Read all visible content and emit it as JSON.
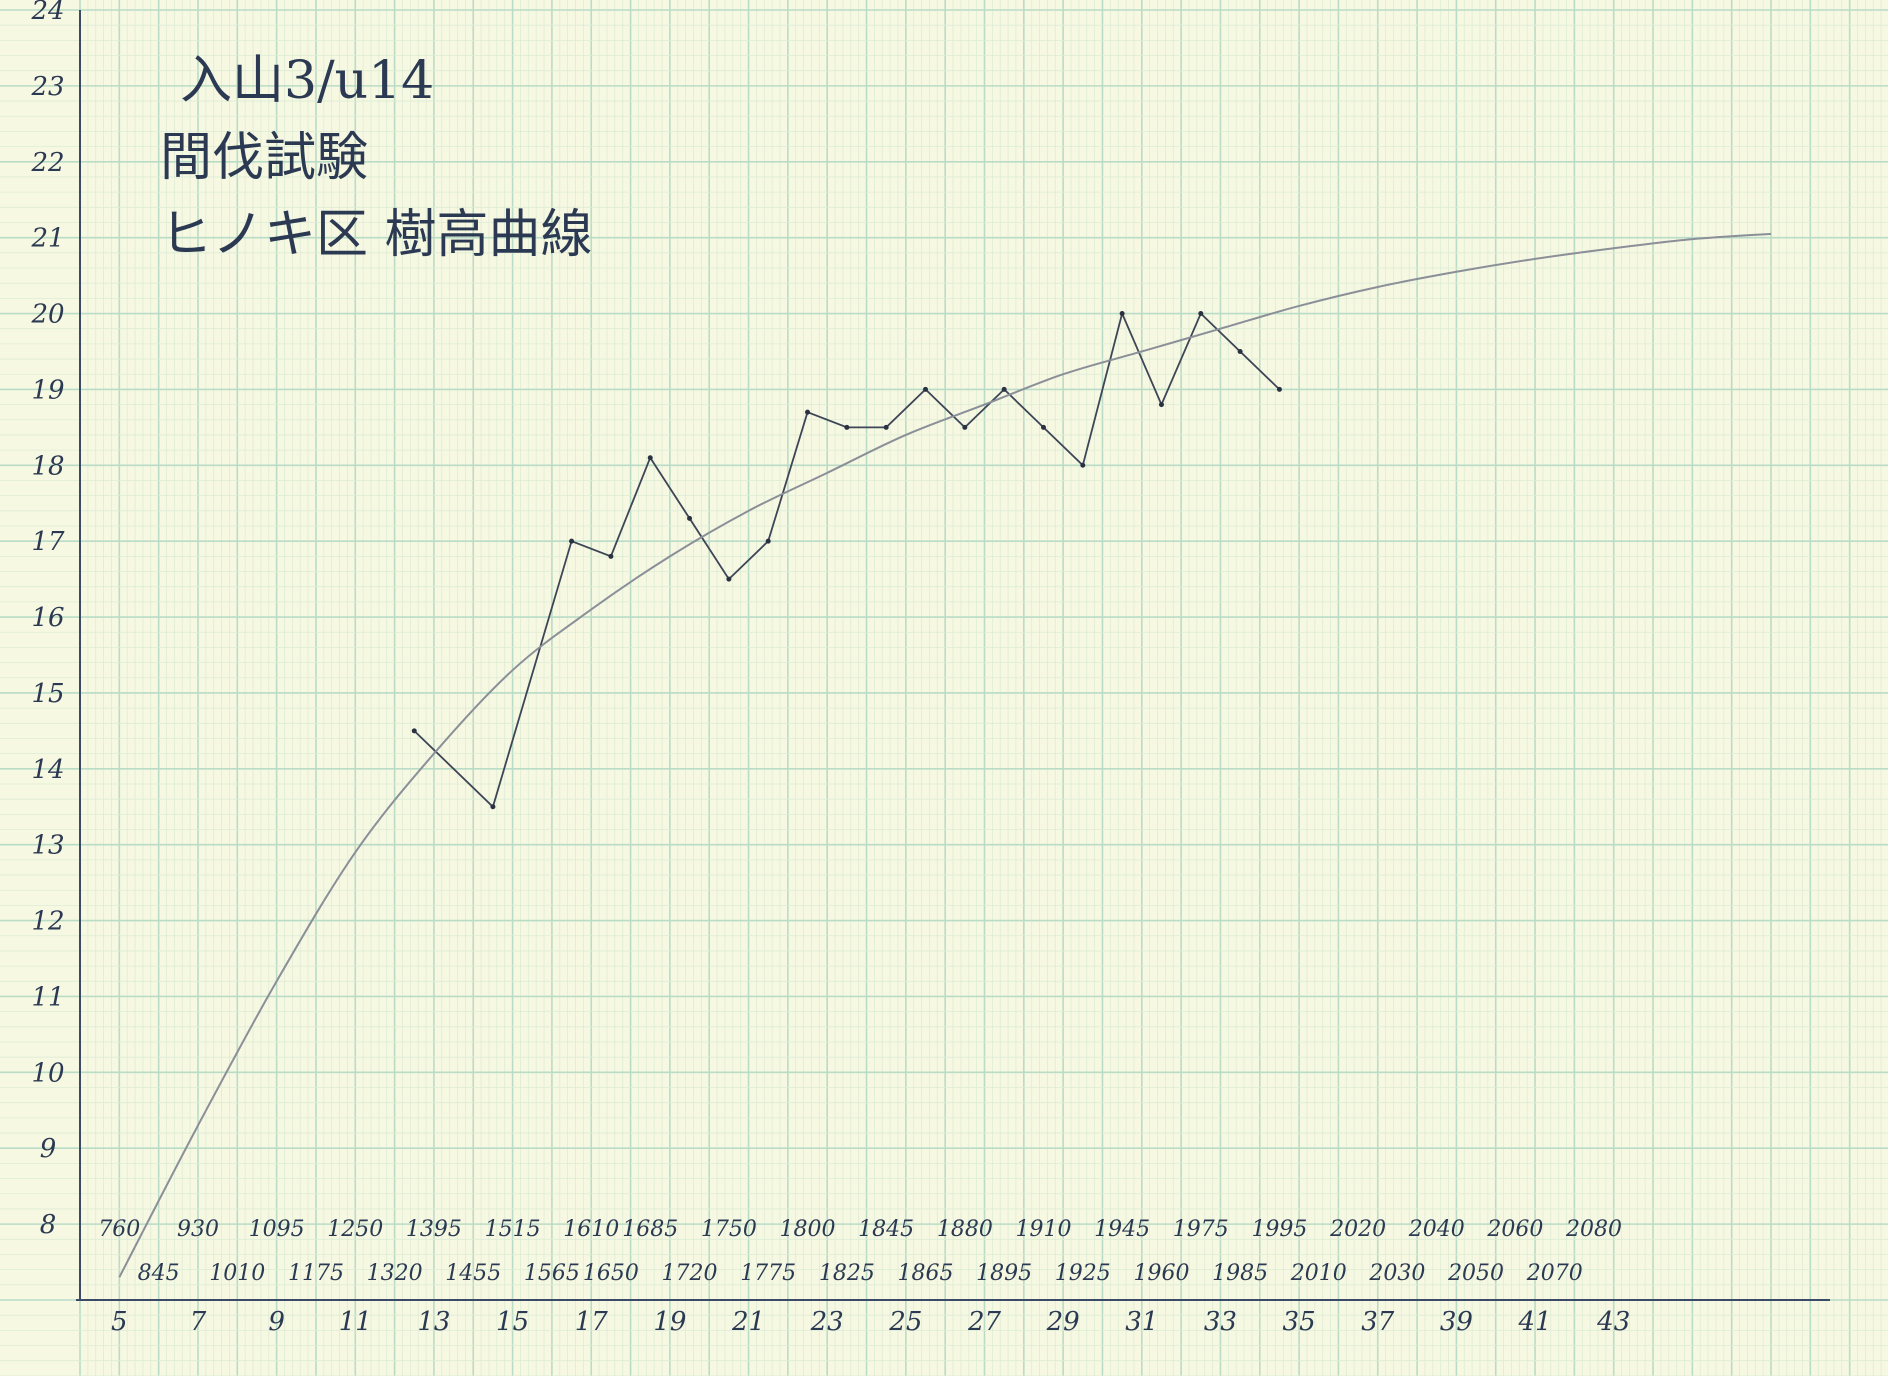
{
  "notes": [
    "入山3/u14",
    "間伐試験",
    "ヒノキ区 樹高曲線"
  ],
  "chart_data": {
    "type": "line",
    "title": "",
    "xlabel": "",
    "ylabel": "",
    "xlim": [
      4,
      48.5
    ],
    "ylim": [
      7,
      24
    ],
    "x_ticks": [
      5,
      7,
      9,
      11,
      13,
      15,
      17,
      19,
      21,
      23,
      25,
      27,
      29,
      31,
      33,
      35,
      37,
      39,
      41,
      43
    ],
    "y_ticks": [
      8,
      9,
      10,
      11,
      12,
      13,
      14,
      15,
      16,
      17,
      18,
      19,
      20,
      21,
      22,
      23,
      24
    ],
    "grid": true,
    "legend": "none",
    "annotations_upper": [
      {
        "x": 5,
        "text": "760"
      },
      {
        "x": 7,
        "text": "930"
      },
      {
        "x": 9,
        "text": "1095"
      },
      {
        "x": 11,
        "text": "1250"
      },
      {
        "x": 13,
        "text": "1395"
      },
      {
        "x": 15,
        "text": "1515"
      },
      {
        "x": 17,
        "text": "1610"
      },
      {
        "x": 18.5,
        "text": "1685"
      },
      {
        "x": 20.5,
        "text": "1750"
      },
      {
        "x": 22.5,
        "text": "1800"
      },
      {
        "x": 24.5,
        "text": "1845"
      },
      {
        "x": 26.5,
        "text": "1880"
      },
      {
        "x": 28.5,
        "text": "1910"
      },
      {
        "x": 30.5,
        "text": "1945"
      },
      {
        "x": 32.5,
        "text": "1975"
      },
      {
        "x": 34.5,
        "text": "1995"
      },
      {
        "x": 36.5,
        "text": "2020"
      },
      {
        "x": 38.5,
        "text": "2040"
      },
      {
        "x": 40.5,
        "text": "2060"
      },
      {
        "x": 42.5,
        "text": "2080"
      }
    ],
    "annotations_lower": [
      {
        "x": 6,
        "text": "845"
      },
      {
        "x": 8,
        "text": "1010"
      },
      {
        "x": 10,
        "text": "1175"
      },
      {
        "x": 12,
        "text": "1320"
      },
      {
        "x": 14,
        "text": "1455"
      },
      {
        "x": 16,
        "text": "1565"
      },
      {
        "x": 17.5,
        "text": "1650"
      },
      {
        "x": 19.5,
        "text": "1720"
      },
      {
        "x": 21.5,
        "text": "1775"
      },
      {
        "x": 23.5,
        "text": "1825"
      },
      {
        "x": 25.5,
        "text": "1865"
      },
      {
        "x": 27.5,
        "text": "1895"
      },
      {
        "x": 29.5,
        "text": "1925"
      },
      {
        "x": 31.5,
        "text": "1960"
      },
      {
        "x": 33.5,
        "text": "1985"
      },
      {
        "x": 35.5,
        "text": "2010"
      },
      {
        "x": 37.5,
        "text": "2030"
      },
      {
        "x": 39.5,
        "text": "2050"
      },
      {
        "x": 41.5,
        "text": "2070"
      }
    ],
    "series": [
      {
        "style": "observed",
        "points": [
          [
            12.5,
            14.5
          ],
          [
            14.5,
            13.5
          ],
          [
            16.5,
            17.0
          ],
          [
            17.5,
            16.8
          ],
          [
            18.5,
            18.1
          ],
          [
            19.5,
            17.3
          ],
          [
            20.5,
            16.5
          ],
          [
            21.5,
            17.0
          ],
          [
            22.5,
            18.7
          ],
          [
            23.5,
            18.5
          ],
          [
            24.5,
            18.5
          ],
          [
            25.5,
            19.0
          ],
          [
            26.5,
            18.5
          ],
          [
            27.5,
            19.0
          ],
          [
            28.5,
            18.5
          ],
          [
            29.5,
            18.0
          ],
          [
            30.5,
            20.0
          ],
          [
            31.5,
            18.8
          ],
          [
            32.5,
            20.0
          ],
          [
            33.5,
            19.5
          ],
          [
            34.5,
            19.0
          ]
        ]
      },
      {
        "style": "fitted",
        "points": [
          [
            5,
            7.3
          ],
          [
            7,
            9.3
          ],
          [
            9,
            11.2
          ],
          [
            11,
            12.9
          ],
          [
            13,
            14.2
          ],
          [
            15,
            15.3
          ],
          [
            17,
            16.1
          ],
          [
            19,
            16.8
          ],
          [
            21,
            17.4
          ],
          [
            23,
            17.9
          ],
          [
            25,
            18.4
          ],
          [
            27,
            18.8
          ],
          [
            29,
            19.2
          ],
          [
            31,
            19.5
          ],
          [
            33,
            19.8
          ],
          [
            35,
            20.1
          ],
          [
            37,
            20.35
          ],
          [
            39,
            20.55
          ],
          [
            41,
            20.72
          ],
          [
            43,
            20.86
          ],
          [
            45,
            20.98
          ],
          [
            47,
            21.05
          ]
        ]
      }
    ]
  }
}
